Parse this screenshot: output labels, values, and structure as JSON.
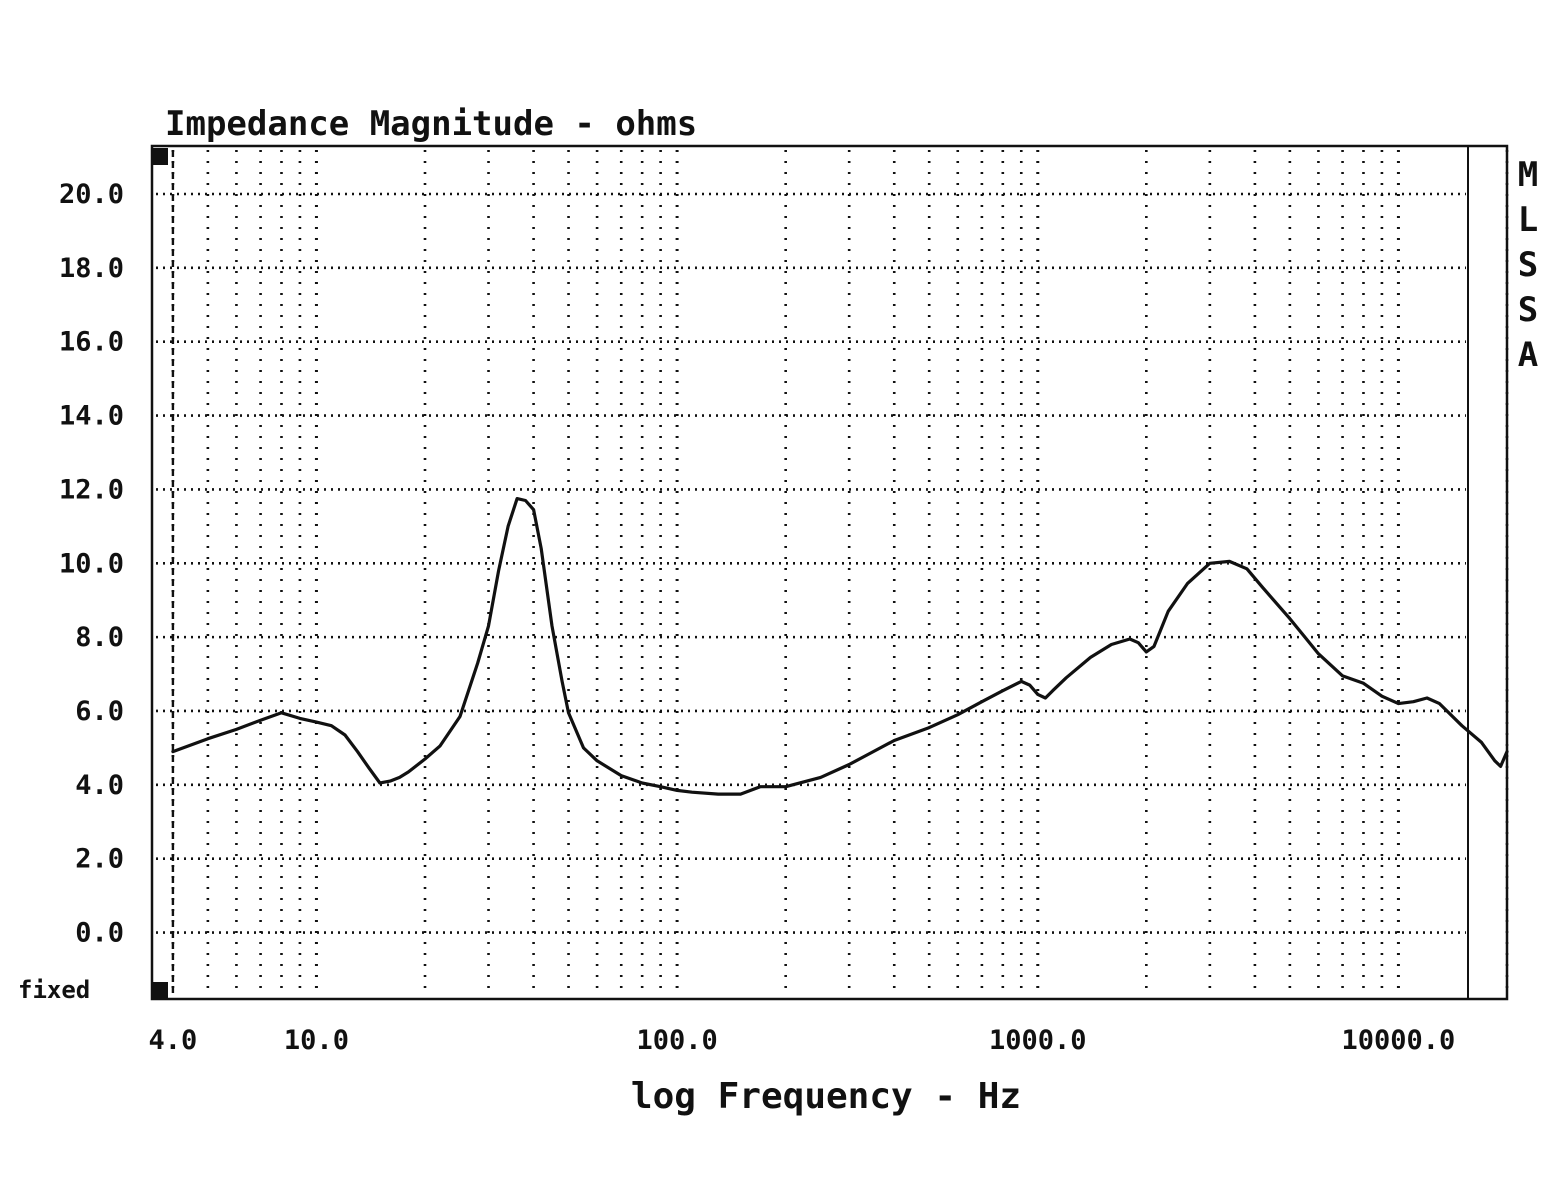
{
  "chart_data": {
    "type": "line",
    "title": "Impedance Magnitude - ohms",
    "xlabel": "log Frequency - Hz",
    "ylabel": "",
    "x_scale": "log",
    "xlim": [
      3.5,
      20000
    ],
    "ylim": [
      -1.8,
      21.3
    ],
    "grid": true,
    "y_ticks": [
      {
        "value": 20,
        "label": "20.0"
      },
      {
        "value": 18,
        "label": "18.0"
      },
      {
        "value": 16,
        "label": "16.0"
      },
      {
        "value": 14,
        "label": "14.0"
      },
      {
        "value": 12,
        "label": "12.0"
      },
      {
        "value": 10,
        "label": "10.0"
      },
      {
        "value": 8,
        "label": "8.0"
      },
      {
        "value": 6,
        "label": "6.0"
      },
      {
        "value": 4,
        "label": "4.0"
      },
      {
        "value": 2,
        "label": "2.0"
      },
      {
        "value": 0,
        "label": "0.0"
      }
    ],
    "y_bottom_label": "fixed",
    "x_ticks": [
      {
        "value": 4,
        "label": "4.0"
      },
      {
        "value": 10,
        "label": "10.0"
      },
      {
        "value": 100,
        "label": "100.0"
      },
      {
        "value": 1000,
        "label": "1000.0"
      },
      {
        "value": 10000,
        "label": "10000.0"
      }
    ],
    "side_label": [
      "M",
      "L",
      "S",
      "S",
      "A"
    ],
    "series": [
      {
        "x": [
          4,
          5,
          6,
          7,
          8,
          9,
          10,
          11,
          12,
          13,
          14,
          15,
          16,
          17,
          18,
          20,
          22,
          25,
          28,
          30,
          32,
          34,
          36,
          38,
          40,
          42,
          45,
          48,
          50,
          55,
          60,
          70,
          80,
          90,
          100,
          110,
          130,
          150,
          170,
          200,
          250,
          300,
          350,
          400,
          500,
          600,
          700,
          800,
          900,
          950,
          1000,
          1050,
          1100,
          1200,
          1400,
          1600,
          1800,
          1900,
          2000,
          2100,
          2300,
          2600,
          3000,
          3400,
          3800,
          4200,
          5000,
          6000,
          7000,
          8000,
          9000,
          10000,
          11000,
          12000,
          13000,
          15000,
          17000,
          18500,
          19200,
          20000
        ],
        "y": [
          4.9,
          5.25,
          5.5,
          5.75,
          5.95,
          5.8,
          5.7,
          5.6,
          5.35,
          4.9,
          4.45,
          4.05,
          4.1,
          4.2,
          4.35,
          4.7,
          5.05,
          5.85,
          7.3,
          8.3,
          9.8,
          11.0,
          11.75,
          11.7,
          11.45,
          10.4,
          8.3,
          6.8,
          5.95,
          5.0,
          4.65,
          4.25,
          4.05,
          3.95,
          3.85,
          3.8,
          3.75,
          3.75,
          3.95,
          3.95,
          4.2,
          4.55,
          4.9,
          5.2,
          5.55,
          5.9,
          6.25,
          6.55,
          6.8,
          6.7,
          6.45,
          6.35,
          6.55,
          6.9,
          7.45,
          7.8,
          7.95,
          7.85,
          7.6,
          7.75,
          8.7,
          9.45,
          10.0,
          10.05,
          9.85,
          9.35,
          8.5,
          7.55,
          6.95,
          6.75,
          6.4,
          6.2,
          6.25,
          6.35,
          6.2,
          5.6,
          5.15,
          4.65,
          4.5,
          4.9
        ]
      }
    ]
  }
}
